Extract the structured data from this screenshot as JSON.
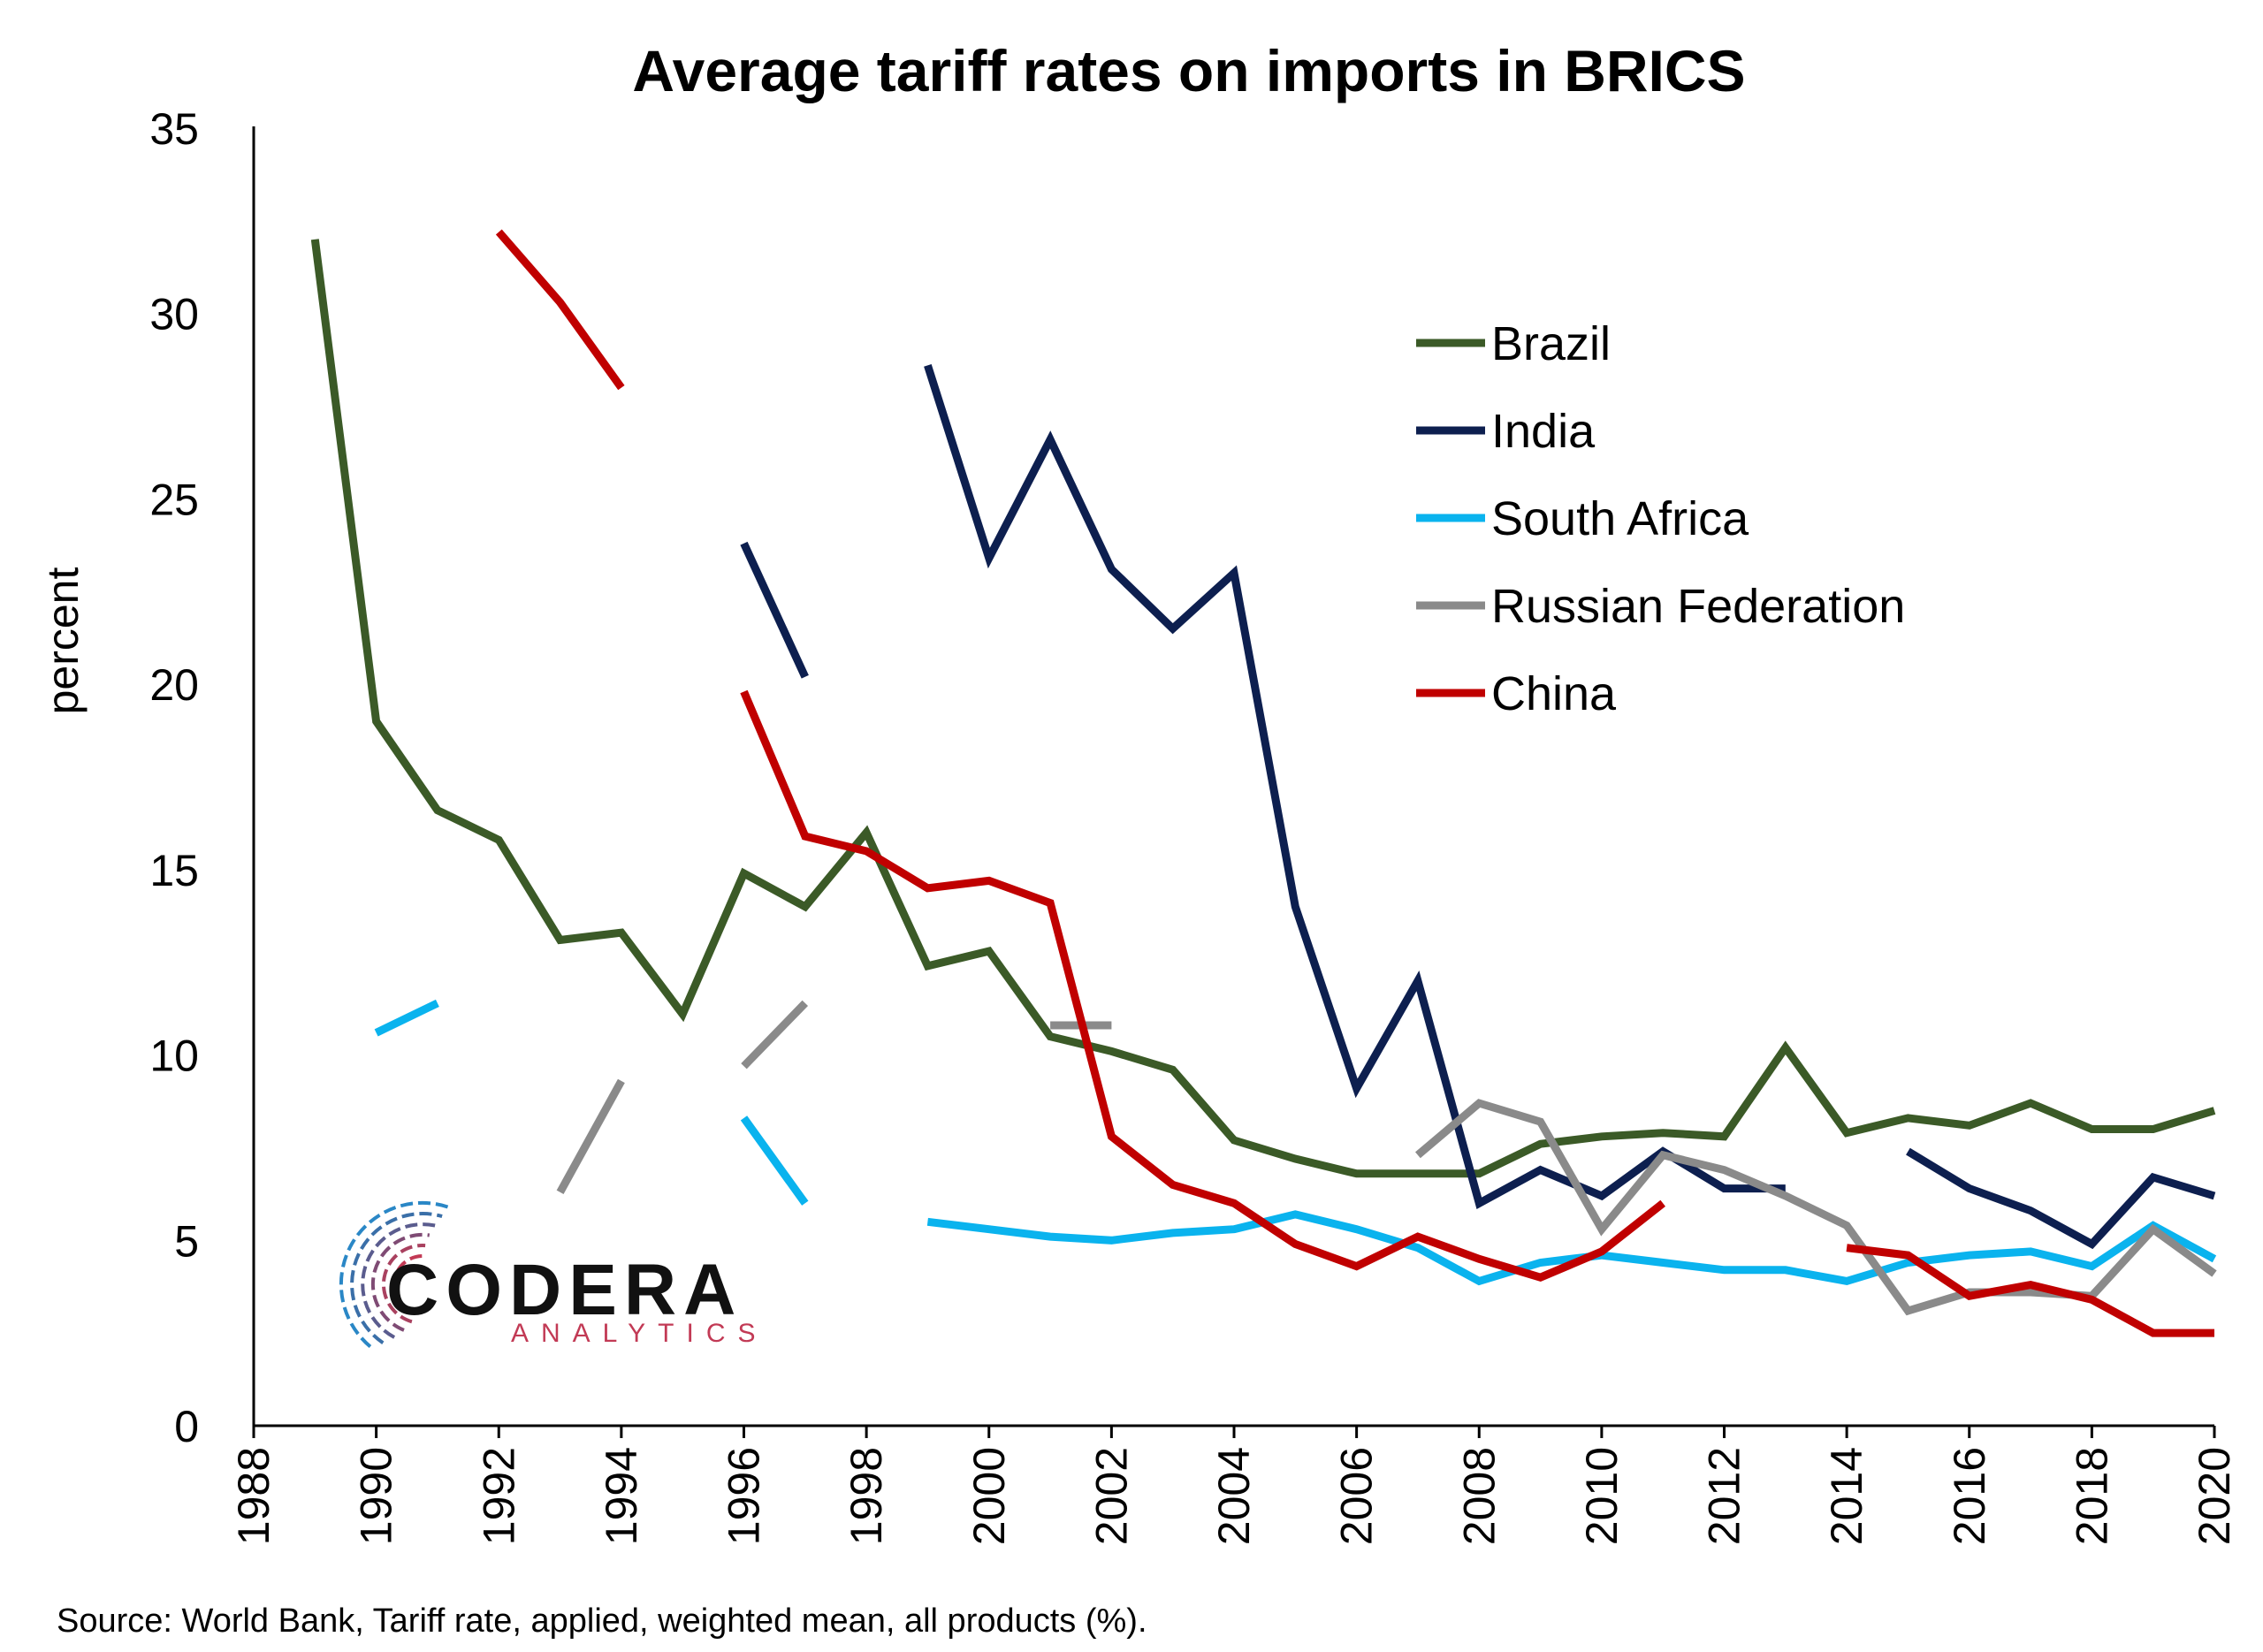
{
  "chart_data": {
    "type": "line",
    "title": "Average tariff rates on imports in BRICS",
    "ylabel": "percent",
    "xlim": [
      1988,
      2020
    ],
    "ylim": [
      0,
      35
    ],
    "x_ticks": [
      1988,
      1990,
      1992,
      1994,
      1996,
      1998,
      2000,
      2002,
      2004,
      2006,
      2008,
      2010,
      2012,
      2014,
      2016,
      2018,
      2020
    ],
    "y_ticks": [
      0,
      5,
      10,
      15,
      20,
      25,
      30,
      35
    ],
    "legend_position": "top-right",
    "source": "Source: World Bank, Tariff rate, applied, weighted mean, all products (%).",
    "series": [
      {
        "name": "Brazil",
        "color": "#3b5a27",
        "points": [
          [
            1989,
            32.0
          ],
          [
            1990,
            19.0
          ],
          [
            1991,
            16.6
          ],
          [
            1992,
            15.8
          ],
          [
            1993,
            13.1
          ],
          [
            1994,
            13.3
          ],
          [
            1995,
            11.1
          ],
          [
            1996,
            14.9
          ],
          [
            1997,
            14.0
          ],
          [
            1998,
            16.0
          ],
          [
            1999,
            12.4
          ],
          [
            2000,
            12.8
          ],
          [
            2001,
            10.5
          ],
          [
            2002,
            10.1
          ],
          [
            2003,
            9.6
          ],
          [
            2004,
            7.7
          ],
          [
            2005,
            7.2
          ],
          [
            2006,
            6.8
          ],
          [
            2007,
            6.8
          ],
          [
            2008,
            6.8
          ],
          [
            2009,
            7.6
          ],
          [
            2010,
            7.8
          ],
          [
            2011,
            7.9
          ],
          [
            2012,
            7.8
          ],
          [
            2013,
            10.2
          ],
          [
            2014,
            7.9
          ],
          [
            2015,
            8.3
          ],
          [
            2016,
            8.1
          ],
          [
            2017,
            8.7
          ],
          [
            2018,
            8.0
          ],
          [
            2019,
            8.0
          ],
          [
            2020,
            8.5
          ]
        ]
      },
      {
        "name": "India",
        "color": "#0d1f4f",
        "points": [
          [
            1996,
            23.8
          ],
          [
            1997,
            20.2
          ],
          null,
          [
            1999,
            28.6
          ],
          [
            2000,
            23.4
          ],
          [
            2001,
            26.6
          ],
          [
            2002,
            23.1
          ],
          [
            2003,
            21.5
          ],
          [
            2004,
            23.0
          ],
          [
            2005,
            14.0
          ],
          [
            2006,
            9.1
          ],
          [
            2007,
            12.0
          ],
          [
            2008,
            6.0
          ],
          [
            2009,
            6.9
          ],
          [
            2010,
            6.2
          ],
          [
            2011,
            7.4
          ],
          [
            2012,
            6.4
          ],
          [
            2013,
            6.4
          ],
          null,
          [
            2015,
            7.4
          ],
          [
            2016,
            6.4
          ],
          [
            2017,
            5.8
          ],
          [
            2018,
            4.9
          ],
          [
            2019,
            6.7
          ],
          [
            2020,
            6.2
          ]
        ]
      },
      {
        "name": "South Africa",
        "color": "#0ab3ee",
        "points": [
          [
            1990,
            10.6
          ],
          [
            1991,
            11.4
          ],
          null,
          [
            1996,
            8.3
          ],
          [
            1997,
            6.0
          ],
          null,
          [
            1999,
            5.5
          ],
          [
            2000,
            5.3
          ],
          [
            2001,
            5.1
          ],
          [
            2002,
            5.0
          ],
          [
            2003,
            5.2
          ],
          [
            2004,
            5.3
          ],
          [
            2005,
            5.7
          ],
          [
            2006,
            5.3
          ],
          [
            2007,
            4.8
          ],
          [
            2008,
            3.9
          ],
          [
            2009,
            4.4
          ],
          [
            2010,
            4.6
          ],
          [
            2011,
            4.4
          ],
          [
            2012,
            4.2
          ],
          [
            2013,
            4.2
          ],
          [
            2014,
            3.9
          ],
          [
            2015,
            4.4
          ],
          [
            2016,
            4.6
          ],
          [
            2017,
            4.7
          ],
          [
            2018,
            4.3
          ],
          [
            2019,
            5.4
          ],
          [
            2020,
            4.5
          ]
        ]
      },
      {
        "name": "Russian Federation",
        "color": "#8a8a8a",
        "points": [
          [
            1993,
            6.3
          ],
          [
            1994,
            9.3
          ],
          null,
          [
            1996,
            9.7
          ],
          [
            1997,
            11.4
          ],
          null,
          [
            2001,
            10.8
          ],
          [
            2002,
            10.8
          ],
          null,
          [
            2007,
            7.3
          ],
          [
            2008,
            8.7
          ],
          [
            2009,
            8.2
          ],
          [
            2010,
            5.3
          ],
          [
            2011,
            7.3
          ],
          [
            2012,
            6.9
          ],
          [
            2013,
            6.2
          ],
          [
            2014,
            5.4
          ],
          [
            2015,
            3.1
          ],
          [
            2016,
            3.6
          ],
          [
            2017,
            3.6
          ],
          [
            2018,
            3.5
          ],
          [
            2019,
            5.3
          ],
          [
            2020,
            4.1
          ]
        ]
      },
      {
        "name": "China",
        "color": "#c00000",
        "points": [
          [
            1992,
            32.2
          ],
          [
            1993,
            30.3
          ],
          [
            1994,
            28.0
          ],
          null,
          [
            1996,
            19.8
          ],
          [
            1997,
            15.9
          ],
          [
            1998,
            15.5
          ],
          [
            1999,
            14.5
          ],
          [
            2000,
            14.7
          ],
          [
            2001,
            14.1
          ],
          [
            2002,
            7.8
          ],
          [
            2003,
            6.5
          ],
          [
            2004,
            6.0
          ],
          [
            2005,
            4.9
          ],
          [
            2006,
            4.3
          ],
          [
            2007,
            5.1
          ],
          [
            2008,
            4.5
          ],
          [
            2009,
            4.0
          ],
          [
            2010,
            4.7
          ],
          [
            2011,
            6.0
          ],
          null,
          [
            2014,
            4.8
          ],
          [
            2015,
            4.6
          ],
          [
            2016,
            3.5
          ],
          [
            2017,
            3.8
          ],
          [
            2018,
            3.4
          ],
          [
            2019,
            2.5
          ],
          [
            2020,
            2.5
          ]
        ]
      }
    ]
  },
  "logo": {
    "name": "CODERA",
    "subtitle": "ANALYTICS"
  }
}
